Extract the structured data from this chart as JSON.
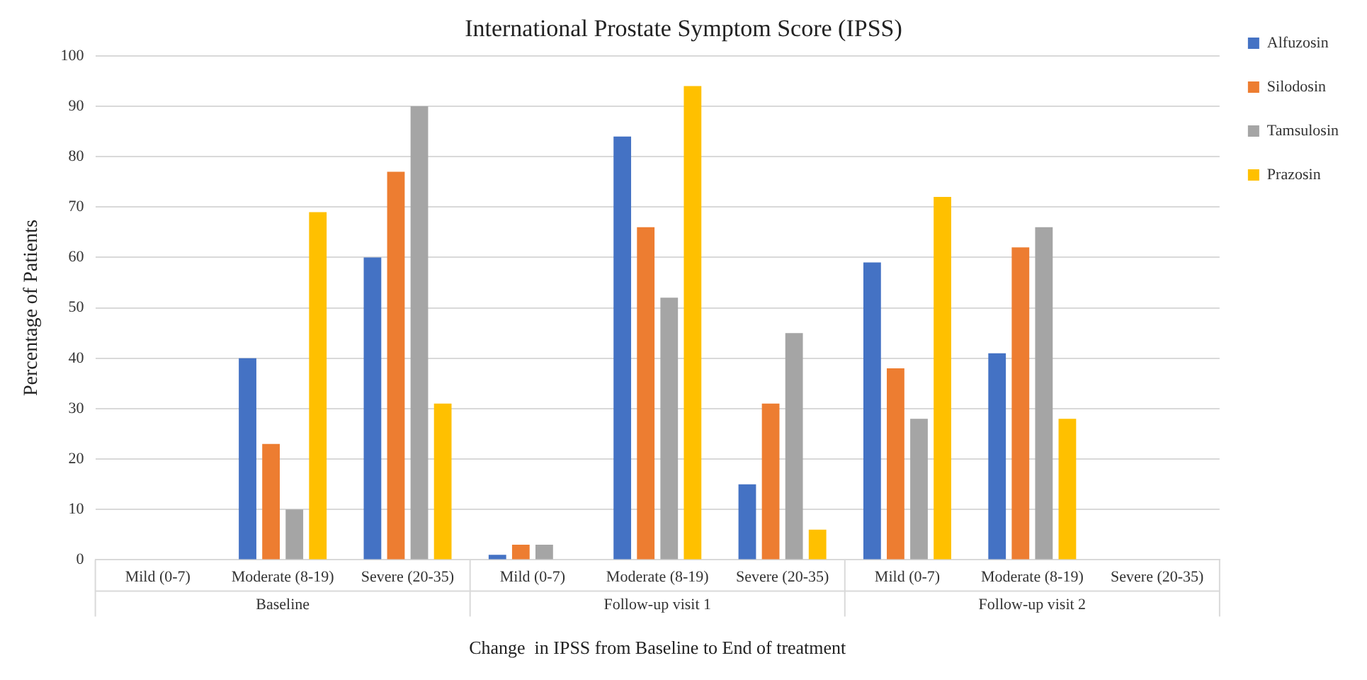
{
  "chart_data": {
    "type": "bar",
    "title": "International Prostate Symptom Score (IPSS)",
    "xlabel": "Change  in IPSS from Baseline to End of treatment",
    "ylabel": "Percentage of Patients",
    "categories": [
      "Mild (0-7)",
      "Moderate (8-19)",
      "Severe (20-35)",
      "Mild (0-7)",
      "Moderate (8-19)",
      "Severe (20-35)",
      "Mild (0-7)",
      "Moderate (8-19)",
      "Severe (20-35)"
    ],
    "annotations": [
      "Baseline",
      "Follow-up visit 1",
      "Follow-up visit 2"
    ],
    "series": [
      {
        "name": "Alfuzosin",
        "color": "#4472c4",
        "values": [
          0,
          40,
          60,
          1,
          84,
          15,
          59,
          41,
          0
        ]
      },
      {
        "name": "Silodosin",
        "color": "#ed7d31",
        "values": [
          0,
          23,
          77,
          3,
          66,
          31,
          38,
          62,
          0
        ]
      },
      {
        "name": "Tamsulosin",
        "color": "#a5a5a5",
        "values": [
          0,
          10,
          90,
          3,
          52,
          45,
          28,
          66,
          0
        ]
      },
      {
        "name": "Prazosin",
        "color": "#ffc000",
        "values": [
          0,
          69,
          31,
          0,
          94,
          6,
          72,
          28,
          0
        ]
      }
    ],
    "ylim": [
      0,
      100
    ],
    "yticks": [
      0,
      10,
      20,
      30,
      40,
      50,
      60,
      70,
      80,
      90,
      100
    ],
    "grid": "y",
    "legend": "top right"
  }
}
